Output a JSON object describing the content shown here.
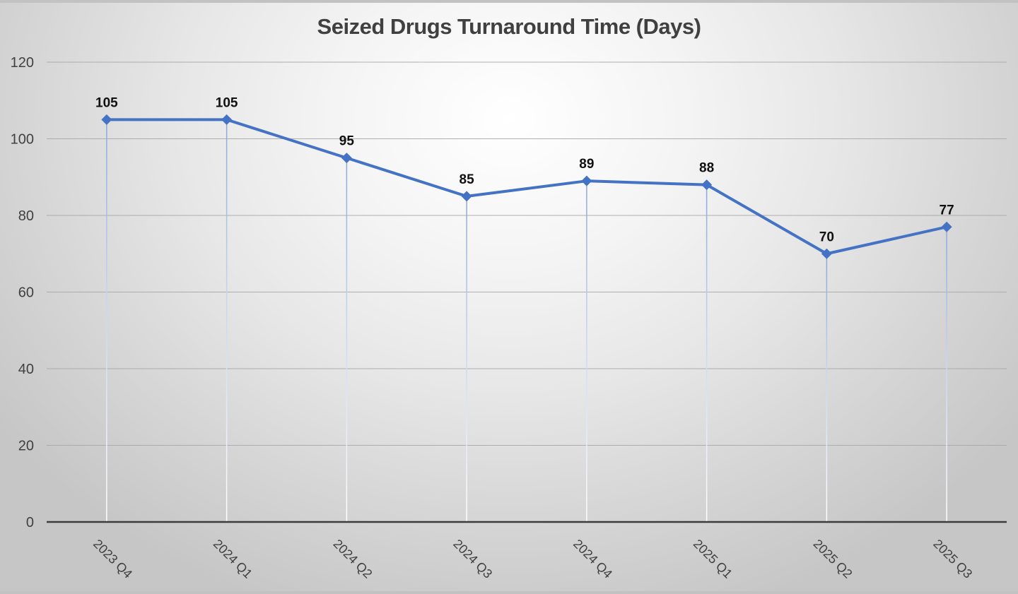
{
  "chart_data": {
    "type": "line",
    "title": "Seized Drugs Turnaround Time (Days)",
    "categories": [
      "2023 Q4",
      "2024 Q1",
      "2024 Q2",
      "2024 Q3",
      "2024 Q4",
      "2025 Q1",
      "2025 Q2",
      "2025 Q3"
    ],
    "values": [
      105,
      105,
      95,
      85,
      89,
      88,
      70,
      77
    ],
    "xlabel": "",
    "ylabel": "",
    "ylim": [
      0,
      120
    ],
    "y_ticks": [
      0,
      20,
      40,
      60,
      80,
      100,
      120
    ],
    "grid": "horizontal",
    "legend": "none",
    "marker": "diamond",
    "data_labels_visible": true,
    "drop_lines": true,
    "x_label_rotation_deg": 45
  },
  "colors": {
    "line": "#4472C4",
    "marker": "#4472C4",
    "drop_line_top": "#8aa7da",
    "drop_line_mid": "#c9d5ee",
    "drop_line_bottom": "#ffffff",
    "gridline": "#a8a8a8",
    "axis_line": "#3c3c3c",
    "tick_label": "#404040",
    "data_label": "#101010",
    "title": "#404040"
  }
}
